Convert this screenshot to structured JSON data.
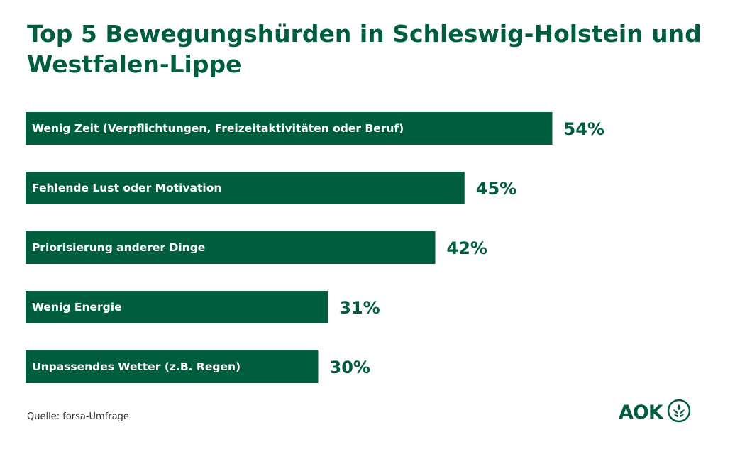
{
  "colors": {
    "accent": "#005e3f",
    "background": "#ffffff"
  },
  "chart_data": {
    "type": "bar",
    "orientation": "horizontal",
    "title": "Top 5 Bewegungshürden in Schleswig-Holstein und Westfalen-Lippe",
    "categories": [
      "Wenig Zeit (Verpflichtungen, Freizeitaktivitäten oder Beruf)",
      "Fehlende Lust oder Motivation",
      "Priorisierung anderer Dinge",
      "Wenig Energie",
      "Unpassendes Wetter (z.B. Regen)"
    ],
    "values": [
      54,
      45,
      42,
      31,
      30
    ],
    "value_labels": [
      "54%",
      "45%",
      "42%",
      "31%",
      "30%"
    ],
    "unit": "%",
    "grid": false
  },
  "footer": {
    "source": "Quelle: forsa-Umfrage"
  },
  "logo": {
    "text": "AOK",
    "icon": "aok-tree-icon"
  }
}
